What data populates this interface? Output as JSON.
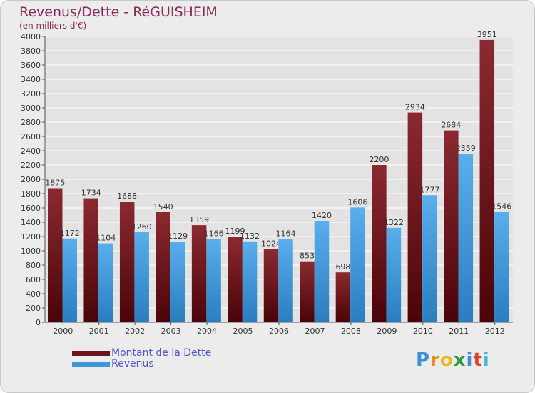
{
  "header": {
    "title": "Revenus/Dette - RéGUISHEIM",
    "subtitle": "(en milliers d'€)"
  },
  "chart_data": {
    "type": "bar",
    "title": "Revenus/Dette - RéGUISHEIM",
    "subtitle": "(en milliers d'€)",
    "categories": [
      "2000",
      "2001",
      "2002",
      "2003",
      "2004",
      "2005",
      "2006",
      "2007",
      "2008",
      "2009",
      "2010",
      "2011",
      "2012"
    ],
    "series": [
      {
        "name": "Montant de la Dette",
        "color": "#6e1418",
        "values": [
          1875,
          1734,
          1688,
          1540,
          1359,
          1199,
          1024,
          853,
          698,
          2200,
          2934,
          2684,
          3951
        ]
      },
      {
        "name": "Revenus",
        "color": "#3f97d8",
        "values": [
          1172,
          1104,
          1260,
          1129,
          1166,
          1132,
          1164,
          1420,
          1606,
          1322,
          1777,
          2359,
          1546
        ]
      }
    ],
    "ylim": [
      0,
      4000
    ],
    "ytick_step": 200,
    "grid": true,
    "legend_position": "bottom-left"
  },
  "legend": {
    "items": [
      {
        "label": "Montant de la Dette",
        "color": "#6e1418"
      },
      {
        "label": "Revenus",
        "color": "#3f97d8"
      }
    ]
  },
  "logo": {
    "letters": [
      {
        "char": "P",
        "color": "#3f8fd8"
      },
      {
        "char": "r",
        "color": "#f08a1c"
      },
      {
        "char": "o",
        "color": "#e8b81c"
      },
      {
        "char": "x",
        "color": "#2f9a3c"
      },
      {
        "char": "i",
        "color": "#3f8fd8"
      },
      {
        "char": "t",
        "color": "#e0401c"
      },
      {
        "char": "i",
        "color": "#4cb8d8"
      }
    ]
  }
}
